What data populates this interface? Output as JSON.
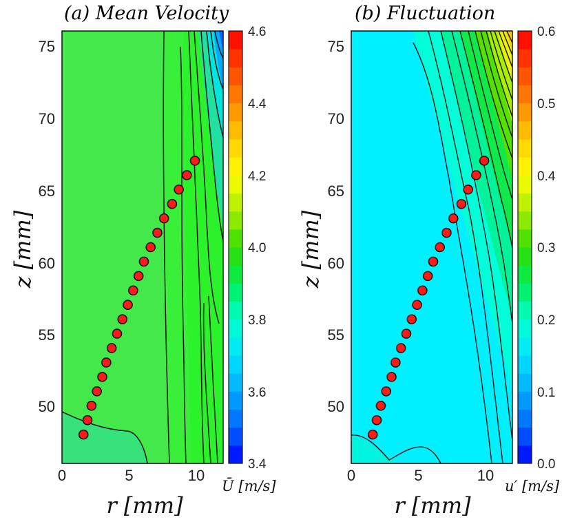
{
  "chart_data": [
    {
      "type": "heatmap",
      "title": "(a) Mean Velocity",
      "xlabel": "r [mm]",
      "ylabel": "z [mm]",
      "xlim": [
        0,
        12
      ],
      "ylim": [
        46,
        76
      ],
      "xticks": [
        "0",
        "5",
        "10"
      ],
      "yticks": [
        "50",
        "55",
        "60",
        "65",
        "70",
        "75"
      ],
      "colorbar": {
        "label": "Ū [m/s]",
        "range": [
          3.4,
          4.6
        ],
        "ticks": [
          "3.4",
          "3.6",
          "3.8",
          "4.0",
          "4.2",
          "4.4",
          "4.6"
        ]
      },
      "field_description": "nearly uniform ~3.95 m/s core; lower values near z=46-49 mm and decreasing toward r=12 mm at high z",
      "markers": {
        "r": [
          1.6,
          1.9,
          2.2,
          2.6,
          3.0,
          3.3,
          3.7,
          4.1,
          4.5,
          4.9,
          5.3,
          5.7,
          6.1,
          6.6,
          7.1,
          7.6,
          8.2,
          8.7,
          9.3,
          9.9
        ],
        "z": [
          48,
          49,
          50,
          51,
          52,
          53,
          54,
          55,
          56,
          57,
          58,
          59,
          60,
          61,
          62,
          63,
          64,
          65,
          66,
          67
        ]
      }
    },
    {
      "type": "heatmap",
      "title": "(b) Fluctuation",
      "xlabel": "r [mm]",
      "ylabel": "z [mm]",
      "xlim": [
        0,
        12
      ],
      "ylim": [
        46,
        76
      ],
      "xticks": [
        "0",
        "5",
        "10"
      ],
      "yticks": [
        "50",
        "55",
        "60",
        "65",
        "70",
        "75"
      ],
      "colorbar": {
        "label": "u′ [m/s]",
        "range": [
          0.0,
          0.6
        ],
        "ticks": [
          "0.0",
          "0.1",
          "0.2",
          "0.3",
          "0.4",
          "0.5",
          "0.6"
        ]
      },
      "field_description": "low fluctuation ~0.17 m/s in core, rising steeply toward r=12 mm in a shear layer widening with z",
      "markers": {
        "r": [
          1.6,
          1.9,
          2.2,
          2.6,
          3.0,
          3.3,
          3.7,
          4.1,
          4.5,
          4.9,
          5.3,
          5.7,
          6.1,
          6.6,
          7.1,
          7.6,
          8.2,
          8.7,
          9.3,
          9.9
        ],
        "z": [
          48,
          49,
          50,
          51,
          52,
          53,
          54,
          55,
          56,
          57,
          58,
          59,
          60,
          61,
          62,
          63,
          64,
          65,
          66,
          67
        ]
      }
    }
  ],
  "colormap": [
    "#0000ff",
    "#0066ff",
    "#00aaff",
    "#00e5ff",
    "#00ffcc",
    "#00ee55",
    "#33dd00",
    "#aaee00",
    "#ffff00",
    "#ffcc00",
    "#ff8800",
    "#ff4400",
    "#ff0000"
  ],
  "marker_color": "#ff1a1a"
}
